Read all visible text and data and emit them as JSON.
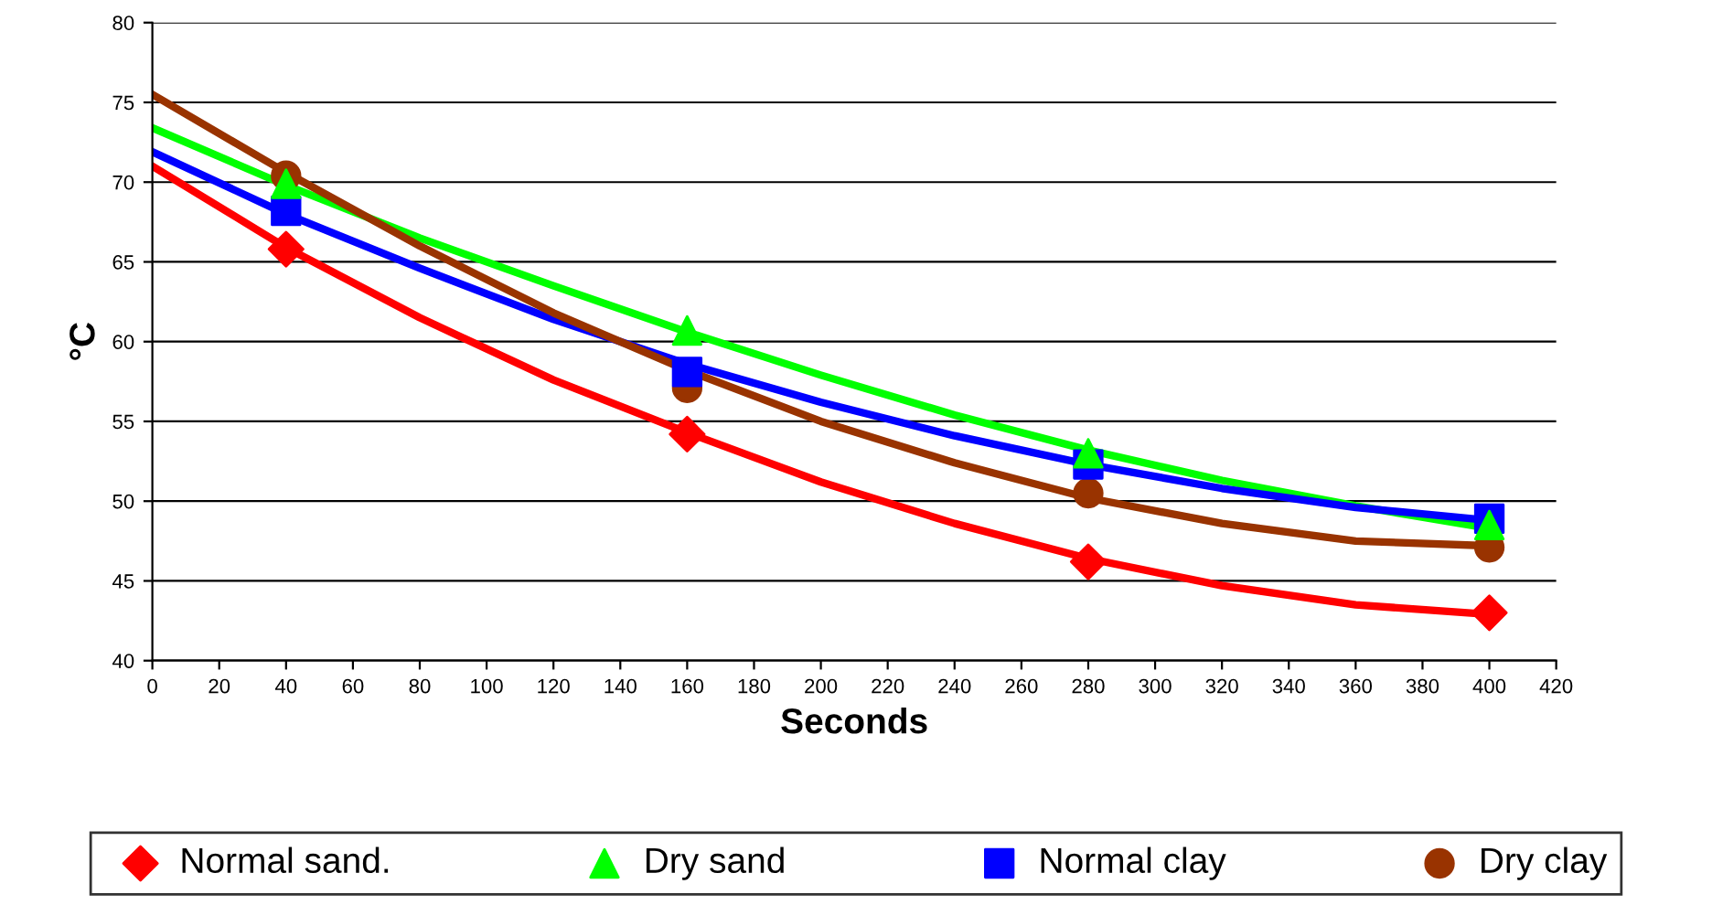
{
  "chart_data": {
    "type": "scatter",
    "xlabel": "Seconds",
    "ylabel": "°C",
    "xlim": [
      0,
      420
    ],
    "ylim": [
      40,
      80
    ],
    "xticks": [
      0,
      20,
      40,
      60,
      80,
      100,
      120,
      140,
      160,
      180,
      200,
      220,
      240,
      260,
      280,
      300,
      320,
      340,
      360,
      380,
      400,
      420
    ],
    "yticks": [
      40,
      45,
      50,
      55,
      60,
      65,
      70,
      75,
      80
    ],
    "grid": "y",
    "legend": "bottom",
    "series": [
      {
        "type": "line",
        "color": "#ff0000",
        "x": [
          0,
          40,
          80,
          120,
          160,
          200,
          240,
          280,
          320,
          360,
          400
        ],
        "values": [
          71.0,
          65.9,
          61.5,
          57.6,
          54.3,
          51.2,
          48.6,
          46.4,
          44.7,
          43.5,
          42.9
        ]
      },
      {
        "type": "line",
        "color": "#00ff00",
        "x": [
          0,
          40,
          80,
          120,
          160,
          200,
          240,
          280,
          320,
          360,
          400
        ],
        "values": [
          73.4,
          69.8,
          66.5,
          63.5,
          60.6,
          57.9,
          55.4,
          53.2,
          51.3,
          49.7,
          48.3
        ]
      },
      {
        "type": "line",
        "color": "#0000ff",
        "x": [
          0,
          40,
          80,
          120,
          160,
          200,
          240,
          280,
          320,
          360,
          400
        ],
        "values": [
          71.9,
          68.0,
          64.6,
          61.4,
          58.6,
          56.2,
          54.1,
          52.3,
          50.8,
          49.6,
          48.8
        ]
      },
      {
        "type": "line",
        "color": "#993300",
        "x": [
          0,
          40,
          80,
          120,
          160,
          200,
          240,
          280,
          320,
          360,
          400
        ],
        "values": [
          75.5,
          70.6,
          66.0,
          61.8,
          58.2,
          55.0,
          52.4,
          50.2,
          48.6,
          47.5,
          47.2
        ]
      },
      {
        "name": "Normal sand.",
        "color": "#ff0000",
        "marker": "diamond",
        "x": [
          40,
          160,
          280,
          400
        ],
        "values": [
          65.8,
          54.2,
          46.2,
          43.0
        ]
      },
      {
        "name": "Dry sand",
        "color": "#00ff00",
        "marker": "triangle",
        "x": [
          40,
          160,
          280,
          400
        ],
        "values": [
          69.9,
          60.7,
          53.0,
          48.5
        ]
      },
      {
        "name": "Normal clay",
        "color": "#0000ff",
        "marker": "square",
        "x": [
          40,
          160,
          280,
          400
        ],
        "values": [
          68.2,
          58.1,
          52.3,
          48.9
        ]
      },
      {
        "name": "Dry clay",
        "color": "#993300",
        "marker": "circle",
        "x": [
          40,
          160,
          280,
          400
        ],
        "values": [
          70.4,
          57.1,
          50.5,
          47.1
        ]
      }
    ]
  }
}
